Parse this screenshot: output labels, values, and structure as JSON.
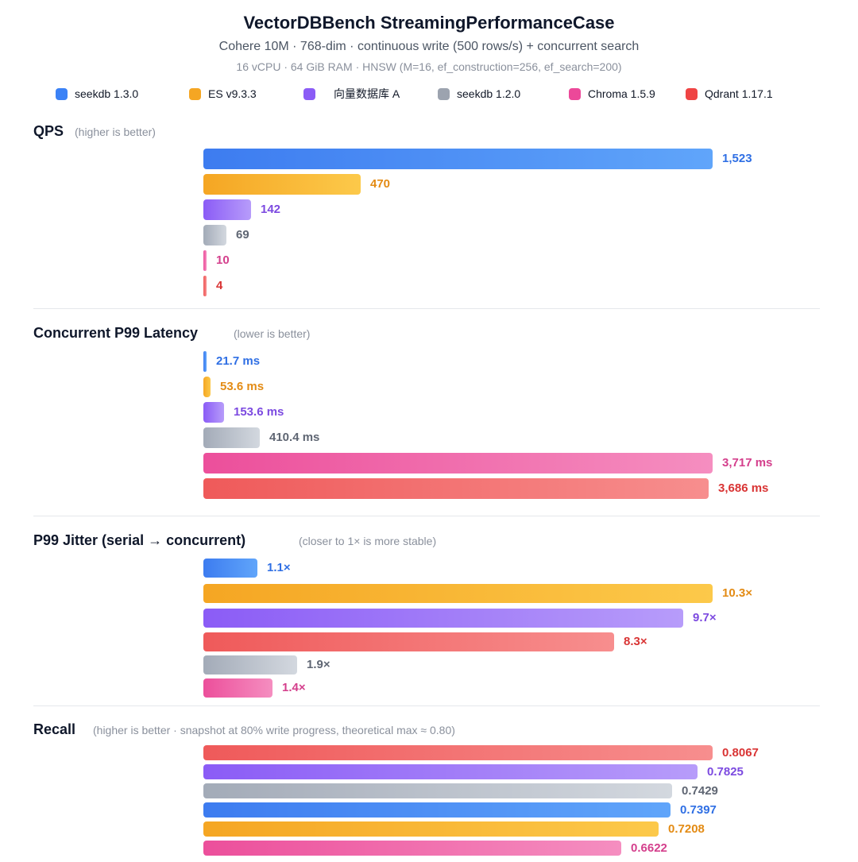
{
  "header": {
    "title": "VectorDBBench StreamingPerformanceCase",
    "subtitle": "Cohere 10M · 768-dim · continuous write (500 rows/s) + concurrent search",
    "spec": "16 vCPU · 64 GiB RAM · HNSW (M=16, ef_construction=256, ef_search=200)"
  },
  "legend": [
    {
      "name": "seekdb 1.3.0",
      "color": "#3b82f6"
    },
    {
      "name": "ES v9.3.3",
      "color": "#f5a623"
    },
    {
      "name": "向量数据库 A",
      "color": "#8b5cf6"
    },
    {
      "name": "seekdb 1.2.0",
      "color": "#9ca3af"
    },
    {
      "name": "Chroma 1.5.9",
      "color": "#ec4899"
    },
    {
      "name": "Qdrant 1.17.1",
      "color": "#ef4444"
    }
  ],
  "colors": {
    "seekdb 1.3.0": {
      "from": "#3d7cf0",
      "to": "#60a5fa",
      "text": "#2f6fe4"
    },
    "ES v9.3.3": {
      "from": "#f5a623",
      "to": "#fcc94a",
      "text": "#e38b14"
    },
    "向量数据库 A": {
      "from": "#8b5cf6",
      "to": "#b79cfa",
      "text": "#7c4ae0"
    },
    "seekdb 1.2.0": {
      "from": "#a3abb8",
      "to": "#d3d8df",
      "text": "#5f6673"
    },
    "Chroma 1.5.9": {
      "from": "#ec4f9b",
      "to": "#f58ec0",
      "text": "#d43f8c"
    },
    "Qdrant 1.17.1": {
      "from": "#ef5a5a",
      "to": "#f78e8e",
      "text": "#d93434"
    }
  },
  "chart_data": [
    {
      "type": "bar",
      "title": "QPS",
      "note": "(higher is better)",
      "series": [
        {
          "name": "seekdb 1.3.0",
          "value": 1523,
          "label": "1,523"
        },
        {
          "name": "ES v9.3.3",
          "value": 470,
          "label": "470"
        },
        {
          "name": "向量数据库 A",
          "value": 142,
          "label": "142"
        },
        {
          "name": "seekdb 1.2.0",
          "value": 69,
          "label": "69"
        },
        {
          "name": "Chroma 1.5.9",
          "value": 10,
          "label": "10"
        },
        {
          "name": "Qdrant 1.17.1",
          "value": 4,
          "label": "4"
        }
      ]
    },
    {
      "type": "bar",
      "title": "Concurrent P99 Latency",
      "note": "(lower is better)",
      "series": [
        {
          "name": "seekdb 1.3.0",
          "value": 21.7,
          "label": "21.7 ms"
        },
        {
          "name": "ES v9.3.3",
          "value": 53.6,
          "label": "53.6 ms"
        },
        {
          "name": "向量数据库 A",
          "value": 153.6,
          "label": "153.6 ms"
        },
        {
          "name": "seekdb 1.2.0",
          "value": 410.4,
          "label": "410.4 ms"
        },
        {
          "name": "Chroma 1.5.9",
          "value": 3717,
          "label": "3,717 ms"
        },
        {
          "name": "Qdrant 1.17.1",
          "value": 3686,
          "label": "3,686 ms"
        }
      ]
    },
    {
      "type": "bar",
      "title": "P99 Jitter (serial → concurrent)",
      "note": "(closer to 1× is more stable)",
      "series": [
        {
          "name": "seekdb 1.3.0",
          "value": 1.1,
          "label": "1.1×"
        },
        {
          "name": "ES v9.3.3",
          "value": 10.3,
          "label": "10.3×"
        },
        {
          "name": "向量数据库 A",
          "value": 9.7,
          "label": "9.7×"
        },
        {
          "name": "Qdrant 1.17.1",
          "value": 8.3,
          "label": "8.3×"
        },
        {
          "name": "seekdb 1.2.0",
          "value": 1.9,
          "label": "1.9×"
        },
        {
          "name": "Chroma 1.5.9",
          "value": 1.4,
          "label": "1.4×"
        }
      ]
    },
    {
      "type": "bar",
      "title": "Recall",
      "note": "(higher is better · snapshot at 80% write progress, theoretical max ≈ 0.80)",
      "series": [
        {
          "name": "Qdrant 1.17.1",
          "value": 0.8067,
          "label": "0.8067"
        },
        {
          "name": "向量数据库 A",
          "value": 0.7825,
          "label": "0.7825"
        },
        {
          "name": "seekdb 1.2.0",
          "value": 0.7429,
          "label": "0.7429"
        },
        {
          "name": "seekdb 1.3.0",
          "value": 0.7397,
          "label": "0.7397"
        },
        {
          "name": "ES v9.3.3",
          "value": 0.7208,
          "label": "0.7208"
        },
        {
          "name": "Chroma 1.5.9",
          "value": 0.6622,
          "label": "0.6622"
        }
      ]
    }
  ]
}
